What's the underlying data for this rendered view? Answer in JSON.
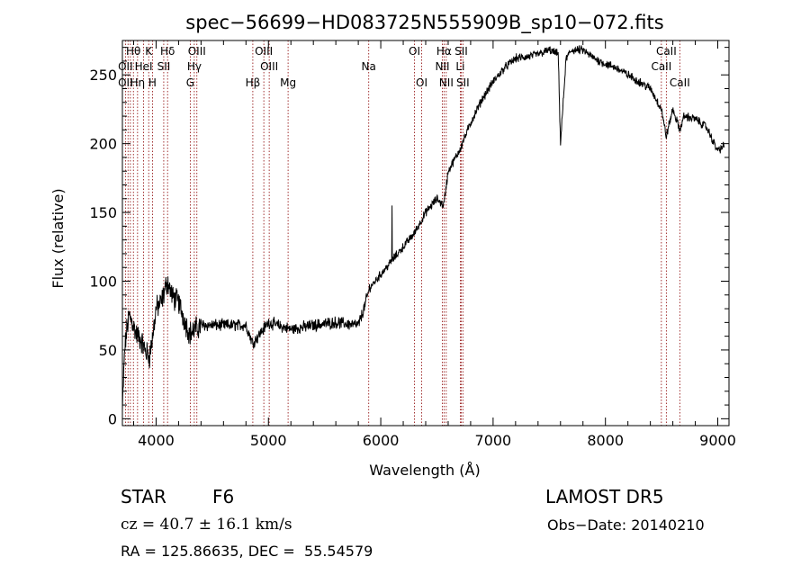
{
  "chart_data": {
    "type": "line",
    "title": "spec−56699−HD083725N555909B_sp10−072.fits",
    "xlabel": "Wavelength (Å)",
    "ylabel": "Flux (relative)",
    "xlim": [
      3700,
      9100
    ],
    "ylim": [
      -5,
      275
    ],
    "xticks": [
      4000,
      5000,
      6000,
      7000,
      8000,
      9000
    ],
    "yticks": [
      0,
      50,
      100,
      150,
      200,
      250
    ],
    "line_color": "#000000",
    "marker_color": "#8b0000",
    "spectrum_anchor": {
      "x": [
        3700,
        3720,
        3740,
        3760,
        3790,
        3820,
        3860,
        3900,
        3940,
        3970,
        4000,
        4050,
        4100,
        4150,
        4200,
        4260,
        4300,
        4400,
        4600,
        4800,
        4860,
        5000,
        5200,
        5400,
        5600,
        5800,
        5850,
        5900,
        6000,
        6100,
        6200,
        6300,
        6400,
        6500,
        6560,
        6600,
        6700,
        6800,
        6900,
        7000,
        7100,
        7200,
        7300,
        7400,
        7500,
        7580,
        7600,
        7650,
        7700,
        7800,
        7900,
        8000,
        8100,
        8200,
        8300,
        8400,
        8500,
        8540,
        8600,
        8662,
        8700,
        8800,
        8900,
        8980,
        9000,
        9050
      ],
      "y": [
        5,
        50,
        65,
        75,
        70,
        62,
        58,
        50,
        45,
        60,
        80,
        85,
        100,
        88,
        85,
        70,
        62,
        68,
        68,
        68,
        55,
        70,
        65,
        68,
        70,
        68,
        80,
        95,
        105,
        115,
        125,
        135,
        150,
        160,
        155,
        180,
        195,
        215,
        232,
        245,
        255,
        262,
        263,
        265,
        268,
        265,
        200,
        262,
        268,
        268,
        262,
        258,
        255,
        250,
        245,
        240,
        225,
        205,
        225,
        210,
        220,
        218,
        212,
        198,
        195,
        198
      ]
    },
    "lines": [
      {
        "label": "Hθ",
        "x": 3798,
        "row": 1
      },
      {
        "label": "K",
        "x": 3934,
        "row": 1
      },
      {
        "label": "Hδ",
        "x": 4102,
        "row": 1
      },
      {
        "label": "OII",
        "x": 3727,
        "row": 2
      },
      {
        "label": "HeI",
        "x": 3889,
        "row": 2
      },
      {
        "label": "SII",
        "x": 4068,
        "row": 2
      },
      {
        "label": "OII",
        "x": 3727,
        "row": 3
      },
      {
        "label": "Hη",
        "x": 3835,
        "row": 3
      },
      {
        "label": "H",
        "x": 3968,
        "row": 3
      },
      {
        "label": "OIII",
        "x": 4363,
        "row": 1
      },
      {
        "label": "Hγ",
        "x": 4340,
        "row": 2
      },
      {
        "label": "G",
        "x": 4304,
        "row": 3
      },
      {
        "label": "OIII",
        "x": 4959,
        "row": 1
      },
      {
        "label": "OIII",
        "x": 5007,
        "row": 2
      },
      {
        "label": "Hβ",
        "x": 4861,
        "row": 3
      },
      {
        "label": "Mg",
        "x": 5175,
        "row": 3
      },
      {
        "label": "Na",
        "x": 5893,
        "row": 2
      },
      {
        "label": "OI",
        "x": 6300,
        "row": 1
      },
      {
        "label": "OI",
        "x": 6364,
        "row": 3
      },
      {
        "label": "Hα",
        "x": 6563,
        "row": 1
      },
      {
        "label": "SII",
        "x": 6716,
        "row": 1
      },
      {
        "label": "NII",
        "x": 6548,
        "row": 2
      },
      {
        "label": "Li",
        "x": 6708,
        "row": 2
      },
      {
        "label": "NII",
        "x": 6583,
        "row": 3
      },
      {
        "label": "SII",
        "x": 6731,
        "row": 3
      },
      {
        "label": "CaII",
        "x": 8542,
        "row": 1
      },
      {
        "label": "CaII",
        "x": 8498,
        "row": 2
      },
      {
        "label": "CaII",
        "x": 8662,
        "row": 3
      }
    ],
    "marker_extra_x": [
      3750,
      3771,
      3771,
      3798,
      3835,
      3889,
      3934,
      3968,
      4068,
      4102,
      4304,
      4340,
      4363,
      4861,
      4959,
      5007,
      5175,
      5893,
      6300,
      6364,
      6548,
      6563,
      6583,
      6708,
      6716,
      6731,
      8498,
      8542,
      8662
    ]
  },
  "info": {
    "object_type": "STAR",
    "subclass": "F6",
    "survey": "LAMOST DR5",
    "redshift": "cz = 40.7 ± 16.1 km/s",
    "obs_date": "Obs−Date: 20140210",
    "coords": "RA = 125.86635, DEC =  55.54579"
  }
}
